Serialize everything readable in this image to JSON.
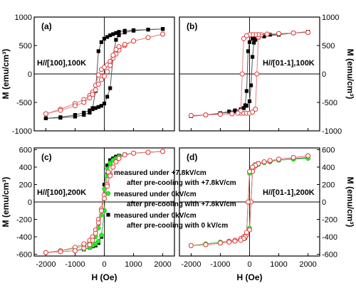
{
  "chart_data": [
    {
      "type": "line",
      "panel_label": "(a)",
      "condition": "H//[100],100K",
      "ylabel_left": "M (emu/cm³)",
      "ylabel_right": "",
      "xlim": [
        -2400,
        2400
      ],
      "ylim": [
        -1000,
        1000
      ],
      "yticks": [
        -1000,
        -500,
        0,
        500,
        1000
      ],
      "series": [
        {
          "name": "measured under +7.8kV/cm after pre-cooling with +7.8kV/cm",
          "style": "open-circle-red",
          "x": [
            -2000,
            -1500,
            -1000,
            -700,
            -500,
            -400,
            -300,
            -200,
            -100,
            0,
            100,
            200,
            300,
            400,
            500,
            700,
            1000,
            1500,
            2000
          ],
          "y": [
            -700,
            -620,
            -520,
            -450,
            -380,
            -320,
            -200,
            -20,
            80,
            120,
            160,
            220,
            280,
            350,
            420,
            500,
            580,
            640,
            700
          ]
        },
        {
          "name": "measured under +7.8kV/cm after pre-cooling with +7.8kV/cm",
          "style": "open-circle-red",
          "x": [
            2000,
            1500,
            1000,
            700,
            500,
            400,
            300,
            200,
            100,
            0,
            -100,
            -200,
            -300,
            -400,
            -500,
            -700,
            -1000,
            -1500,
            -2000
          ],
          "y": [
            700,
            640,
            580,
            520,
            480,
            430,
            330,
            150,
            40,
            -40,
            -100,
            -180,
            -280,
            -360,
            -420,
            -500,
            -560,
            -640,
            -700
          ]
        },
        {
          "name": "measured under 0kV/cm after pre-cooling with 0 kV/cm",
          "style": "filled-square-black",
          "x": [
            -2000,
            -1500,
            -1000,
            -700,
            -500,
            -400,
            -300,
            -200,
            -100,
            0,
            100,
            200,
            300,
            400,
            500,
            700,
            1000,
            1500,
            2000
          ],
          "y": [
            -780,
            -760,
            -720,
            -680,
            -640,
            -620,
            -600,
            -580,
            -560,
            -520,
            -400,
            -250,
            300,
            600,
            680,
            730,
            760,
            780,
            790
          ]
        },
        {
          "name": "measured under 0kV/cm after pre-cooling with 0 kV/cm",
          "style": "filled-square-black",
          "x": [
            2000,
            1500,
            1000,
            700,
            500,
            400,
            300,
            200,
            100,
            0,
            -100,
            -200,
            -300,
            -400,
            -500,
            -700,
            -1000,
            -1500,
            -2000
          ],
          "y": [
            790,
            780,
            770,
            760,
            740,
            720,
            700,
            680,
            650,
            620,
            560,
            400,
            -300,
            -600,
            -680,
            -720,
            -750,
            -770,
            -780
          ]
        }
      ]
    },
    {
      "type": "line",
      "panel_label": "(b)",
      "condition": "H//[01-1],100K",
      "ylabel_left": "",
      "ylabel_right": "M (emu/cm³)",
      "xlim": [
        -2400,
        2400
      ],
      "ylim": [
        -1000,
        1000
      ],
      "yticks": [
        -1000,
        -500,
        0,
        500,
        1000
      ],
      "series": [
        {
          "name": "measured under +7.8kV/cm after pre-cooling with +7.8kV/cm",
          "style": "open-circle-red",
          "x": [
            -2000,
            -1500,
            -1000,
            -600,
            -300,
            -200,
            -100,
            0,
            100,
            200,
            250,
            300,
            400,
            600,
            1000,
            1500,
            2000
          ],
          "y": [
            -730,
            -720,
            -710,
            -700,
            -690,
            -690,
            -690,
            -690,
            -670,
            -620,
            0,
            650,
            690,
            700,
            710,
            720,
            730
          ]
        },
        {
          "name": "measured under +7.8kV/cm after pre-cooling with +7.8kV/cm",
          "style": "open-circle-red",
          "x": [
            2000,
            1500,
            1000,
            600,
            300,
            200,
            100,
            0,
            -100,
            -200,
            -250,
            -300,
            -400,
            -600,
            -1000,
            -1500,
            -2000
          ],
          "y": [
            730,
            720,
            710,
            700,
            690,
            690,
            690,
            690,
            670,
            620,
            0,
            -650,
            -690,
            -700,
            -710,
            -720,
            -730
          ]
        },
        {
          "name": "measured under 0kV/cm after pre-cooling with 0 kV/cm",
          "style": "filled-square-black",
          "x": [
            -2000,
            -1500,
            -1000,
            -700,
            -500,
            -300,
            -200,
            -100,
            0,
            50,
            100,
            150,
            200,
            300,
            500,
            1000,
            1500,
            2000
          ],
          "y": [
            -740,
            -720,
            -690,
            -660,
            -640,
            -620,
            -600,
            -560,
            -480,
            -200,
            300,
            550,
            600,
            640,
            660,
            690,
            720,
            740
          ]
        },
        {
          "name": "measured under 0kV/cm after pre-cooling with 0 kV/cm",
          "style": "filled-square-black",
          "x": [
            2000,
            1500,
            1000,
            700,
            500,
            300,
            200,
            100,
            0,
            -50,
            -100,
            -150,
            -200,
            -300,
            -500,
            -1000,
            -1500,
            -2000
          ],
          "y": [
            740,
            720,
            700,
            690,
            680,
            660,
            640,
            620,
            560,
            400,
            -300,
            -550,
            -600,
            -640,
            -660,
            -690,
            -720,
            -740
          ]
        }
      ]
    },
    {
      "type": "line",
      "panel_label": "(c)",
      "condition": "H//[100],200K",
      "ylabel_left": "M (emu/cm³)",
      "ylabel_right": "",
      "xlabel": "H (Oe)",
      "xlim": [
        -2400,
        2400
      ],
      "ylim": [
        -620,
        620
      ],
      "yticks": [
        -600,
        -400,
        -200,
        0,
        200,
        400,
        600
      ],
      "xticks": [
        -2000,
        -1000,
        0,
        1000,
        2000
      ],
      "series": [
        {
          "name": "measured under +7.8kV/cm after pre-cooling with +7.8kV/cm",
          "style": "open-circle-red",
          "x": [
            -2000,
            -1500,
            -1000,
            -700,
            -500,
            -400,
            -300,
            -200,
            -100,
            0,
            100,
            200,
            300,
            400,
            500,
            700,
            1000,
            1500,
            2000
          ],
          "y": [
            -580,
            -560,
            -520,
            -480,
            -440,
            -400,
            -320,
            -200,
            -80,
            80,
            200,
            320,
            400,
            460,
            500,
            540,
            560,
            570,
            580
          ]
        },
        {
          "name": "measured under +7.8kV/cm after pre-cooling with +7.8kV/cm",
          "style": "open-circle-red",
          "x": [
            2000,
            1500,
            1000,
            700,
            500,
            400,
            300,
            200,
            100,
            0,
            -100,
            -200,
            -300,
            -400,
            -500,
            -700,
            -1000,
            -1500,
            -2000
          ],
          "y": [
            580,
            570,
            560,
            540,
            500,
            460,
            400,
            300,
            180,
            40,
            -100,
            -240,
            -360,
            -440,
            -490,
            -530,
            -560,
            -570,
            -580
          ]
        },
        {
          "name": "measured under 0kV/cm after pre-cooling with +7.8kV/cm",
          "style": "filled-circle-green",
          "x": [
            -2000,
            -1500,
            -1000,
            -700,
            -500,
            -400,
            -300,
            -200,
            -100,
            0,
            100,
            200,
            300,
            400,
            500,
            700,
            1000,
            1500,
            2000
          ],
          "y": [
            -580,
            -560,
            -530,
            -500,
            -470,
            -440,
            -400,
            -300,
            -150,
            150,
            380,
            450,
            480,
            500,
            520,
            540,
            560,
            570,
            580
          ]
        },
        {
          "name": "measured under 0kV/cm after pre-cooling with +7.8kV/cm",
          "style": "filled-circle-green",
          "x": [
            2000,
            1500,
            1000,
            700,
            500,
            400,
            300,
            200,
            100,
            0,
            -100,
            -200,
            -300,
            -400,
            -500,
            -700,
            -1000,
            -1500,
            -2000
          ],
          "y": [
            580,
            570,
            560,
            540,
            520,
            500,
            480,
            440,
            300,
            -100,
            -380,
            -450,
            -480,
            -500,
            -520,
            -540,
            -560,
            -570,
            -580
          ]
        },
        {
          "name": "measured under 0kV/cm after pre-cooling with 0 kV/cm",
          "style": "filled-square-black",
          "x": [
            -2000,
            -1500,
            -1000,
            -700,
            -500,
            -400,
            -300,
            -200,
            -100,
            0,
            100,
            200,
            300,
            400,
            500,
            700,
            1000,
            1500,
            2000
          ],
          "y": [
            -580,
            -560,
            -530,
            -500,
            -460,
            -420,
            -360,
            -250,
            -100,
            200,
            420,
            480,
            500,
            520,
            530,
            545,
            560,
            570,
            580
          ]
        },
        {
          "name": "measured under 0kV/cm after pre-cooling with 0 kV/cm",
          "style": "filled-square-black",
          "x": [
            2000,
            1500,
            1000,
            700,
            500,
            400,
            300,
            200,
            100,
            0,
            -100,
            -200,
            -300,
            -400,
            -500,
            -700,
            -1000,
            -1500,
            -2000
          ],
          "y": [
            580,
            570,
            560,
            545,
            530,
            515,
            490,
            440,
            320,
            -100,
            -400,
            -470,
            -500,
            -510,
            -525,
            -545,
            -560,
            -570,
            -580
          ]
        }
      ],
      "legend": {
        "placement": "right-center",
        "entries": [
          {
            "line1": "measured under +7.8kV/cm",
            "line2": "after pre-cooling with +7.8kV/cm",
            "style": "open-circle-red"
          },
          {
            "line1": "measured under 0kV/cm",
            "line2": "after pre-cooling with +7.8kV/cm",
            "style": "filled-circle-green"
          },
          {
            "line1": "measured under 0kV/cm",
            "line2": "after pre-cooling with 0 kV/cm",
            "style": "filled-square-black"
          }
        ]
      }
    },
    {
      "type": "line",
      "panel_label": "(d)",
      "condition": "H//[01-1],200K",
      "ylabel_left": "",
      "ylabel_right": "M (emu/cm³)",
      "xlabel": "H (Oe)",
      "xlim": [
        -2400,
        2400
      ],
      "ylim": [
        -620,
        620
      ],
      "yticks": [
        -600,
        -400,
        -200,
        0,
        200,
        400,
        600
      ],
      "xticks": [
        -2000,
        -1000,
        0,
        1000,
        2000
      ],
      "series": [
        {
          "name": "measured under +7.8kV/cm after pre-cooling with +7.8kV/cm",
          "style": "open-circle-red",
          "x": [
            -2000,
            -1500,
            -1000,
            -700,
            -500,
            -300,
            -200,
            -100,
            0,
            50,
            100,
            150,
            200,
            300,
            500,
            700,
            1000,
            1500,
            2000
          ],
          "y": [
            -500,
            -490,
            -470,
            -450,
            -440,
            -420,
            -400,
            -380,
            -320,
            0,
            350,
            400,
            420,
            440,
            460,
            470,
            490,
            510,
            530
          ]
        },
        {
          "name": "measured under +7.8kV/cm after pre-cooling with +7.8kV/cm",
          "style": "open-circle-red",
          "x": [
            2000,
            1500,
            1000,
            700,
            500,
            300,
            200,
            100,
            0,
            -50,
            -100,
            -150,
            -200,
            -300,
            -500,
            -700,
            -1000,
            -1500,
            -2000
          ],
          "y": [
            530,
            510,
            490,
            475,
            460,
            440,
            420,
            400,
            350,
            0,
            -350,
            -400,
            -420,
            -440,
            -450,
            -460,
            -470,
            -490,
            -500
          ]
        },
        {
          "name": "measured under 0kV/cm after pre-cooling with +7.8kV/cm",
          "style": "filled-circle-green",
          "x": [
            -2000,
            -1500,
            -1000,
            -700,
            -500,
            -300,
            -200,
            -100,
            0,
            50,
            100,
            150,
            200,
            300,
            500,
            700,
            1000,
            1500,
            2000
          ],
          "y": [
            -500,
            -480,
            -460,
            -450,
            -440,
            -420,
            -400,
            -360,
            -300,
            0,
            350,
            400,
            420,
            440,
            450,
            460,
            480,
            490,
            500
          ]
        },
        {
          "name": "measured under 0kV/cm after pre-cooling with +7.8kV/cm",
          "style": "filled-circle-green",
          "x": [
            2000,
            1500,
            1000,
            700,
            500,
            300,
            200,
            100,
            0,
            -50,
            -100,
            -150,
            -200,
            -300,
            -500,
            -700,
            -1000,
            -1500,
            -2000
          ],
          "y": [
            500,
            490,
            480,
            460,
            450,
            430,
            410,
            380,
            330,
            0,
            -350,
            -400,
            -420,
            -430,
            -440,
            -450,
            -460,
            -480,
            -500
          ]
        },
        {
          "name": "measured under 0kV/cm after pre-cooling with 0 kV/cm",
          "style": "filled-square-black",
          "x": [
            -2000,
            -1500,
            -1000,
            -700,
            -500,
            -300,
            -200,
            -100,
            0,
            50,
            100,
            150,
            200,
            300,
            500,
            700,
            1000,
            1500,
            2000
          ],
          "y": [
            -500,
            -490,
            -470,
            -455,
            -445,
            -430,
            -410,
            -380,
            -320,
            0,
            360,
            410,
            430,
            445,
            455,
            465,
            480,
            495,
            510
          ]
        },
        {
          "name": "measured under 0kV/cm after pre-cooling with 0 kV/cm",
          "style": "filled-square-black",
          "x": [
            2000,
            1500,
            1000,
            700,
            500,
            300,
            200,
            100,
            0,
            -50,
            -100,
            -150,
            -200,
            -300,
            -500,
            -700,
            -1000,
            -1500,
            -2000
          ],
          "y": [
            510,
            495,
            480,
            465,
            455,
            440,
            420,
            390,
            330,
            0,
            -360,
            -410,
            -425,
            -440,
            -450,
            -460,
            -470,
            -490,
            -500
          ]
        }
      ]
    }
  ]
}
